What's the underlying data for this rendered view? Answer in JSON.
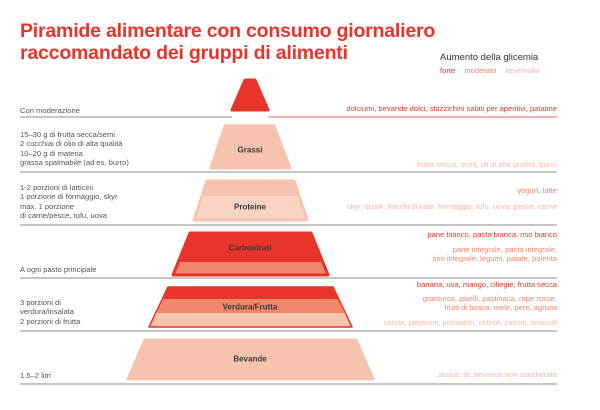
{
  "title": {
    "line1": "Piramide alimentare con consumo giornaliero",
    "line2": "raccomandato dei gruppi di alimenti"
  },
  "legend": {
    "title": "Aumento della glicemia",
    "items": [
      {
        "label": "forte",
        "color": "#e8342b"
      },
      {
        "label": "moderato",
        "color": "#f0866a"
      },
      {
        "label": "lieve/nullo",
        "color": "#f4b8a4"
      }
    ]
  },
  "colors": {
    "strong": "#e8342b",
    "moderate": "#f0866a",
    "weak": "#f6c3ae",
    "line": "#666666",
    "line_red": "#e8342b"
  },
  "tiers": [
    {
      "label": "",
      "left_text": [
        "Con moderazione"
      ],
      "right_strong": [
        "dolciumi, bevande dolci, stuzzichini salati per aperitivi, patatine"
      ],
      "right_moderate": [],
      "right_weak": []
    },
    {
      "label": "Grassi",
      "left_text": [
        "15–30 g di frutta secca/semi",
        "2 cucchiai di olio di alta qualità",
        "10–20 g di materia",
        "grassa spalmabile (ad es. burro)"
      ],
      "right_strong": [],
      "right_moderate": [],
      "right_weak": [
        "frutta secca, semi, oli di alta qualità, burro"
      ]
    },
    {
      "label": "Proteine",
      "left_text": [
        "1-2 porzioni di latticini",
        "1 porzione di formaggio, skyr",
        "max. 1 porzione",
        "di carne/pesce, tofu, uova"
      ],
      "right_strong": [],
      "right_moderate": [
        "yogurt, latte"
      ],
      "right_weak": [
        "skyr, quark, fiocchi di latte, formaggio, tofu, uova, pesce, carne"
      ]
    },
    {
      "label": "Carboidrati",
      "left_text": [
        "A ogni pasto principale"
      ],
      "right_strong": [
        "pane bianco, pasta bianca, riso bianco"
      ],
      "right_moderate": [
        "pane integrale, pasta integrale,",
        "riso integrale, legumi, patate, polenta"
      ],
      "right_weak": []
    },
    {
      "label": "Verdura/Frutta",
      "left_text": [
        "3 porzioni di",
        "verdura/insalata",
        "2 porzioni di frutta"
      ],
      "right_strong": [
        "banana, uva, mango, ciliegie, frutta secca"
      ],
      "right_moderate": [
        "granturco, piselli, pastinaca, rape rosse,",
        "frutti di bosco, mele, pere, agrumi"
      ],
      "right_weak": [
        "carote, peperoni, pomodori, cetrioli, cavolo, broccoli"
      ]
    },
    {
      "label": "Bevande",
      "left_text": [
        "1.5–2 litri"
      ],
      "right_strong": [],
      "right_moderate": [],
      "right_weak": [
        "acqua, tè, bevande non zuccherate"
      ]
    }
  ]
}
